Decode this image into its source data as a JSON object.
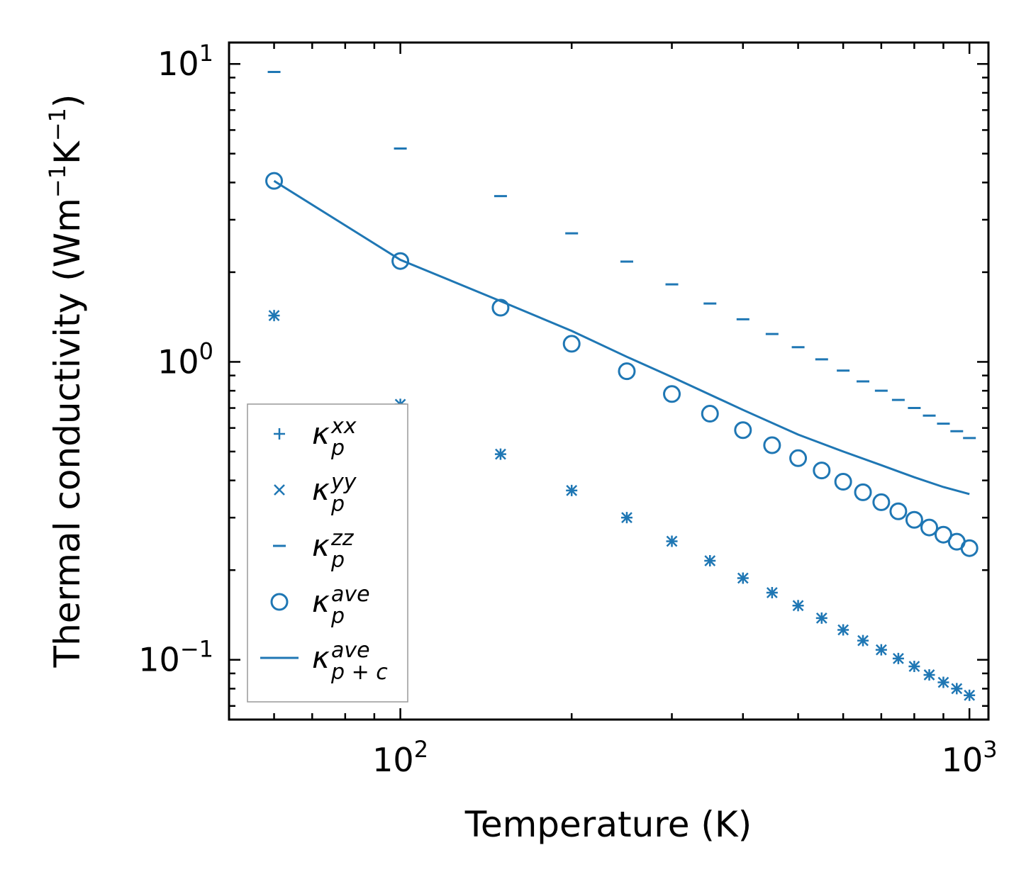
{
  "chart_data": {
    "type": "scatter",
    "xscale": "log",
    "yscale": "log",
    "xlabel": "Temperature (K)",
    "ylabel": "Thermal conductivity (Wm",
    "ylabel_parts": {
      "pre": "Thermal conductivity (Wm",
      "exp1": "−1",
      "mid": "K",
      "exp2": "−1",
      "post": ")"
    },
    "xlim": [
      50,
      1080
    ],
    "ylim": [
      0.063,
      11.8
    ],
    "xticks": [
      {
        "base": "10",
        "exp": "2",
        "value": 100
      },
      {
        "base": "10",
        "exp": "3",
        "value": 1000
      }
    ],
    "yticks": [
      {
        "base": "10",
        "exp": "−1",
        "value": 0.1
      },
      {
        "base": "10",
        "exp": "0",
        "value": 1
      },
      {
        "base": "10",
        "exp": "1",
        "value": 10
      }
    ],
    "x": [
      60,
      100,
      150,
      200,
      250,
      300,
      350,
      400,
      450,
      500,
      550,
      600,
      650,
      700,
      750,
      800,
      850,
      900,
      950,
      1000
    ],
    "series": [
      {
        "name": "kappa_p_xx",
        "marker": "plus",
        "values": [
          1.43,
          0.72,
          0.49,
          0.37,
          0.3,
          0.25,
          0.215,
          0.188,
          0.168,
          0.152,
          0.138,
          0.126,
          0.116,
          0.108,
          0.101,
          0.095,
          0.089,
          0.084,
          0.08,
          0.076
        ]
      },
      {
        "name": "kappa_p_yy",
        "marker": "x",
        "values": [
          1.43,
          0.72,
          0.49,
          0.37,
          0.3,
          0.25,
          0.215,
          0.188,
          0.168,
          0.152,
          0.138,
          0.126,
          0.116,
          0.108,
          0.101,
          0.095,
          0.089,
          0.084,
          0.08,
          0.076
        ]
      },
      {
        "name": "kappa_p_zz",
        "marker": "hline",
        "values": [
          9.4,
          5.2,
          3.6,
          2.7,
          2.17,
          1.82,
          1.57,
          1.39,
          1.24,
          1.12,
          1.02,
          0.935,
          0.86,
          0.8,
          0.745,
          0.7,
          0.66,
          0.62,
          0.585,
          0.555
        ]
      },
      {
        "name": "kappa_p_ave",
        "marker": "circle",
        "values": [
          4.05,
          2.18,
          1.52,
          1.15,
          0.93,
          0.78,
          0.67,
          0.59,
          0.525,
          0.475,
          0.432,
          0.396,
          0.365,
          0.338,
          0.315,
          0.295,
          0.278,
          0.263,
          0.249,
          0.237
        ]
      },
      {
        "name": "kappa_p+c_ave",
        "marker": "line",
        "x": [
          60,
          100,
          150,
          200,
          250,
          300,
          400,
          500,
          600,
          700,
          800,
          900,
          1000
        ],
        "values": [
          4.05,
          2.2,
          1.6,
          1.27,
          1.04,
          0.89,
          0.69,
          0.57,
          0.5,
          0.45,
          0.41,
          0.38,
          0.36
        ]
      }
    ],
    "legend": {
      "position": "lower-left",
      "entries": [
        {
          "marker": "plus",
          "sym": "κ",
          "sub": "p",
          "sup": "xx"
        },
        {
          "marker": "x",
          "sym": "κ",
          "sub": "p",
          "sup": "yy"
        },
        {
          "marker": "hline",
          "sym": "κ",
          "sub": "p",
          "sup": "zz"
        },
        {
          "marker": "circle",
          "sym": "κ",
          "sub": "p",
          "sup": "ave"
        },
        {
          "marker": "line",
          "sym": "κ",
          "sub": "p + c",
          "sup": "ave"
        }
      ]
    },
    "color": "#1f77b4"
  }
}
